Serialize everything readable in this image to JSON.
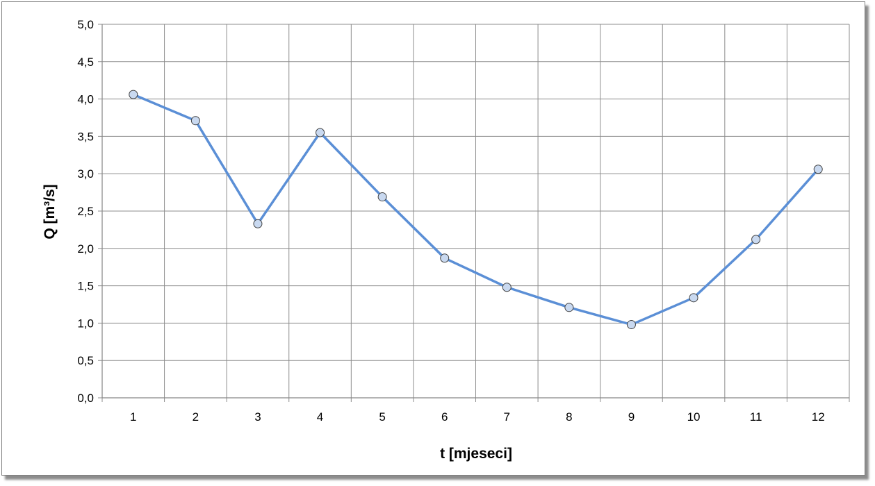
{
  "chart_data": {
    "type": "line",
    "xlabel": "t [mjeseci]",
    "ylabel": "Q [m³/s]",
    "categories": [
      "1",
      "2",
      "3",
      "4",
      "5",
      "6",
      "7",
      "8",
      "9",
      "10",
      "11",
      "12"
    ],
    "series": [
      {
        "values": [
          4.06,
          3.71,
          2.33,
          3.55,
          2.69,
          1.87,
          1.48,
          1.21,
          0.98,
          1.34,
          2.12,
          3.06
        ]
      }
    ],
    "ylim": [
      0,
      5
    ],
    "ytick_labels": [
      "0,0",
      "0,5",
      "1,0",
      "1,5",
      "2,0",
      "2,5",
      "3,0",
      "3,5",
      "4,0",
      "4,5",
      "5,0"
    ],
    "grid": true,
    "legend": "none",
    "colors": {
      "line": "#5b8fd6",
      "marker_fill": "#c9d9f0",
      "marker_stroke": "#404040",
      "grid": "#8c8c8c"
    }
  }
}
